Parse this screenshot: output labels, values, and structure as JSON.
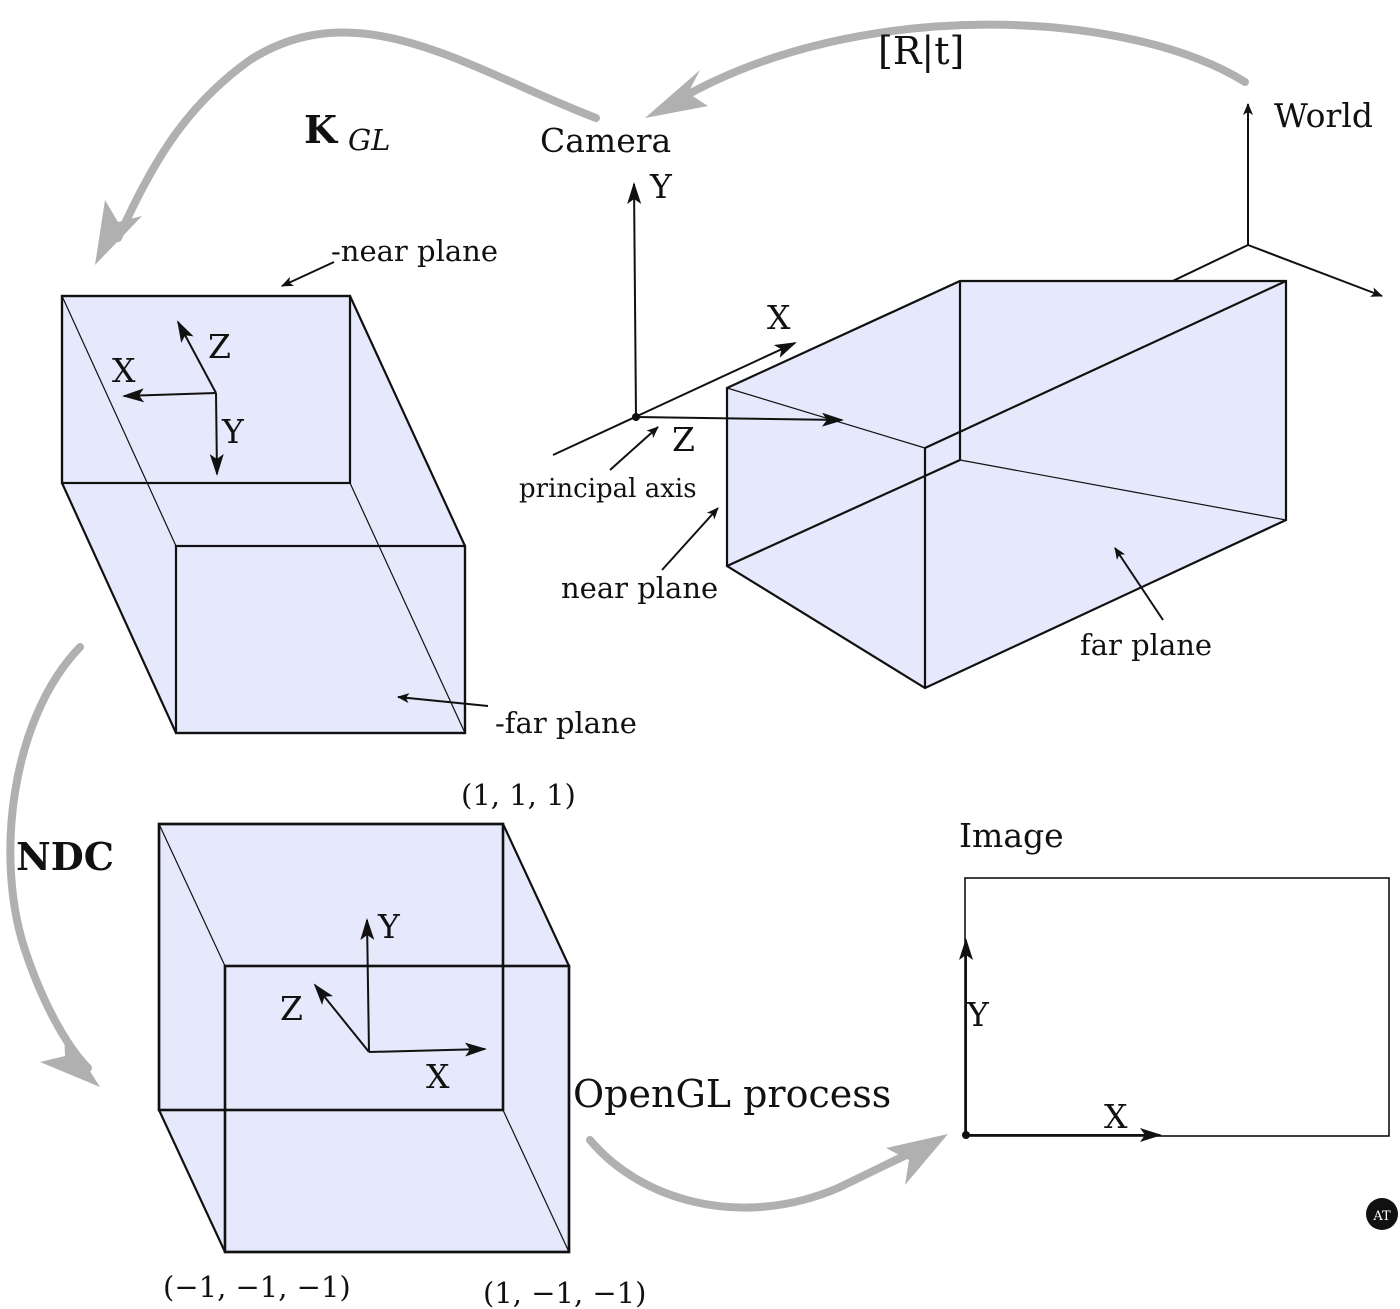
{
  "colors": {
    "frustum_fill": "#e6e8fb",
    "line": "#111111",
    "flow_arrow": "#b0b0b0",
    "background": "#ffffff"
  },
  "transforms": {
    "rt": "[R|t]",
    "kgl_main": "K",
    "kgl_sub": "GL",
    "ndc": "NDC",
    "opengl": "OpenGL process"
  },
  "world": {
    "title": "World"
  },
  "camera": {
    "title": "Camera",
    "axis_y": "Y",
    "axis_x": "X",
    "axis_z": "Z",
    "principal_axis": "principal axis",
    "near_plane": "near plane",
    "far_plane": "far plane"
  },
  "gl_view": {
    "near_plane": "-near plane",
    "far_plane": "-far plane",
    "axis_x": "X",
    "axis_y": "Y",
    "axis_z": "Z"
  },
  "ndc_cube": {
    "corner_top": "(1, 1, 1)",
    "corner_bottom_left": "(−1, −1, −1)",
    "corner_bottom_right": "(1, −1, −1)",
    "axis_x": "X",
    "axis_y": "Y",
    "axis_z": "Z"
  },
  "image": {
    "title": "Image",
    "axis_x": "X",
    "axis_y": "Y"
  },
  "logo": {
    "text": "AT"
  }
}
